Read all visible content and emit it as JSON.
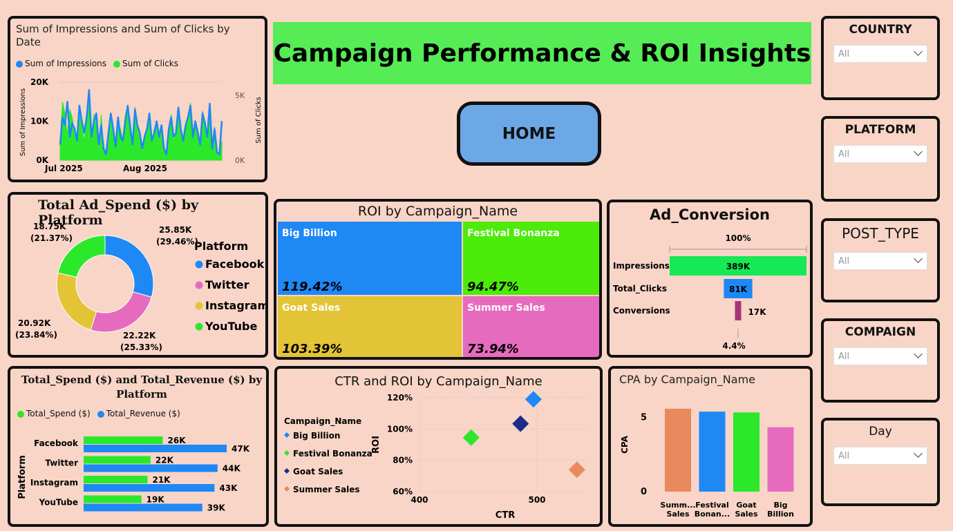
{
  "header": {
    "title": "Campaign Performance & ROI Insights",
    "home_label": "HOME"
  },
  "colors": {
    "blue": "#1E88F5",
    "green": "#2BE82B",
    "pink": "#E66BBE",
    "yellow": "#E3C437",
    "orange": "#E98A5E",
    "navy": "#1C2B8C"
  },
  "slicers": [
    {
      "title": "COUNTRY",
      "value": "All"
    },
    {
      "title": "PLATFORM",
      "value": "All"
    },
    {
      "title": "POST_TYPE",
      "value": "All"
    },
    {
      "title": "COMPAIGN",
      "value": "All"
    },
    {
      "title": "Day",
      "value": "All"
    }
  ],
  "chart_data": [
    {
      "type": "line",
      "title": "Sum of Impressions and Sum of Clicks by Date",
      "legend": [
        "Sum of Impressions",
        "Sum of Clicks"
      ],
      "ylabel": "Sum of Impressions",
      "y2label": "Sum of Clicks",
      "y_ticks": [
        "0K",
        "10K",
        "20K"
      ],
      "y2_ticks": [
        "0K",
        "5K"
      ],
      "x_ticks": [
        "Jul 2025",
        "Aug 2025"
      ],
      "ylim": [
        0,
        20000
      ],
      "y2lim": [
        0,
        6000
      ],
      "series": [
        {
          "name": "Sum of Impressions",
          "values": [
            4000,
            11000,
            9000,
            15000,
            6000,
            9500,
            8000,
            5000,
            14000,
            10000,
            7000,
            11000,
            18000,
            6000,
            10000,
            12000,
            4000,
            9000,
            3000,
            1500,
            7000,
            12000,
            8000,
            3500,
            11000,
            6000,
            5000,
            10000,
            14000,
            8500,
            4000,
            13000,
            9000,
            7000,
            3000,
            6000,
            8000,
            12000,
            5000,
            7000,
            10000,
            6000,
            9000,
            3000,
            1500,
            8000,
            11000,
            6000,
            7000,
            13500,
            8000,
            5000,
            9000,
            11000,
            14000,
            6000,
            10000,
            7000,
            4000,
            12000,
            9500,
            6000,
            14500,
            3000,
            8000,
            2000,
            1500,
            10000
          ]
        },
        {
          "name": "Sum of Clicks",
          "values": [
            1500,
            4500,
            3600,
            2000,
            3900,
            3300,
            2000,
            1400,
            4100,
            2600,
            1500,
            3000,
            4300,
            1400,
            3500,
            3200,
            500,
            3500,
            900,
            400,
            2000,
            3500,
            2200,
            800,
            3000,
            2400,
            1600,
            3500,
            4200,
            3100,
            1300,
            4100,
            2400,
            1600,
            500,
            2000,
            2300,
            3300,
            1300,
            2400,
            3000,
            2000,
            2600,
            800,
            500,
            2600,
            3500,
            1500,
            2000,
            3900,
            2400,
            1500,
            2600,
            3500,
            4400,
            1600,
            3000,
            2400,
            1300,
            3800,
            2900,
            2000,
            4000,
            800,
            2600,
            600,
            400,
            1500
          ]
        }
      ]
    },
    {
      "type": "pie",
      "title": "Total Ad_Spend ($) by Platform",
      "legend_title": "Platform",
      "slices": [
        {
          "name": "Facebook",
          "value": 25.85,
          "label": "25.85K",
          "pct": "(29.46%)"
        },
        {
          "name": "Twitter",
          "value": 22.22,
          "label": "22.22K",
          "pct": "(25.33%)"
        },
        {
          "name": "Instagram",
          "value": 20.92,
          "label": "20.92K",
          "pct": "(23.84%)"
        },
        {
          "name": "YouTube",
          "value": 18.75,
          "label": "18.75K",
          "pct": "(21.37%)"
        }
      ]
    },
    {
      "type": "treemap",
      "title": "ROI by Campaign_Name",
      "items": [
        {
          "name": "Big Billion",
          "value": "119.42%"
        },
        {
          "name": "Festival Bonanza",
          "value": "94.47%"
        },
        {
          "name": "Goat Sales",
          "value": "103.39%"
        },
        {
          "name": "Summer Sales",
          "value": "73.94%"
        }
      ]
    },
    {
      "type": "funnel",
      "title": "Ad_Conversion",
      "top_pct": "100%",
      "bottom_pct": "4.4%",
      "stages": [
        {
          "name": "Impressions",
          "value": 389,
          "label": "389K"
        },
        {
          "name": "Total_Clicks",
          "value": 81,
          "label": "81K"
        },
        {
          "name": "Conversions",
          "value": 17,
          "label": "17K"
        }
      ]
    },
    {
      "type": "bar",
      "title": "Total_Spend ($) and Total_Revenue ($) by Platform",
      "legend": [
        "Total_Spend ($)",
        "Total_Revenue ($)"
      ],
      "ylabel": "Platform",
      "categories": [
        "Facebook",
        "Twitter",
        "Instagram",
        "YouTube"
      ],
      "series": [
        {
          "name": "Total_Spend ($)",
          "values": [
            26,
            22,
            21,
            19
          ],
          "labels": [
            "26K",
            "22K",
            "21K",
            "19K"
          ]
        },
        {
          "name": "Total_Revenue ($)",
          "values": [
            47,
            44,
            43,
            39
          ],
          "labels": [
            "47K",
            "44K",
            "43K",
            "39K"
          ]
        }
      ]
    },
    {
      "type": "scatter",
      "title": "CTR and ROI by Campaign_Name",
      "legend_title": "Campaign_Name",
      "xlabel": "CTR",
      "ylabel": "ROI",
      "x_ticks": [
        "400",
        "500"
      ],
      "y_ticks": [
        "60%",
        "80%",
        "100%",
        "120%"
      ],
      "xlim": [
        400,
        540
      ],
      "ylim": [
        60,
        120
      ],
      "points": [
        {
          "name": "Big Billion",
          "x": 497,
          "y": 119
        },
        {
          "name": "Festival Bonanza",
          "x": 444,
          "y": 94.5
        },
        {
          "name": "Goat Sales",
          "x": 486,
          "y": 103.4
        },
        {
          "name": "Summer Sales",
          "x": 534,
          "y": 74
        }
      ]
    },
    {
      "type": "bar",
      "title": "CPA by Campaign_Name",
      "ylabel": "CPA",
      "y_ticks": [
        "0",
        "5"
      ],
      "ylim": [
        0,
        6.2
      ],
      "categories": [
        {
          "l1": "Summ...",
          "l2": "Sales"
        },
        {
          "l1": "Festival",
          "l2": "Bonan..."
        },
        {
          "l1": "Goat",
          "l2": "Sales"
        },
        {
          "l1": "Big",
          "l2": "Billion"
        }
      ],
      "values": [
        5.6,
        5.4,
        5.35,
        4.35
      ]
    }
  ]
}
